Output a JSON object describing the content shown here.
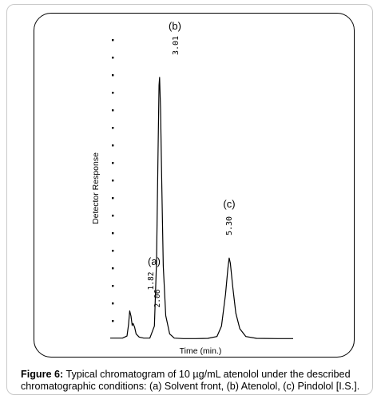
{
  "chart_data": {
    "type": "line",
    "xlabel": "Time (min.)",
    "ylabel": "Detector Response",
    "grid": false,
    "peaks": [
      {
        "label": "(a)",
        "retention_time_labels": [
          "2.06",
          "1.82"
        ],
        "relative_height": 0.15
      },
      {
        "label": "(b)",
        "retention_time_label": "3.01",
        "relative_height": 1.0
      },
      {
        "label": "(c)",
        "retention_time_label": "5.30",
        "relative_height": 0.32
      }
    ],
    "series": [
      {
        "x": [
          1.4,
          1.8,
          1.95,
          2.0,
          2.04,
          2.08,
          2.12,
          2.15,
          2.2,
          2.25,
          2.35,
          2.5,
          2.7,
          2.85,
          2.92,
          2.97,
          3.0,
          3.02,
          3.05,
          3.09,
          3.14,
          3.22,
          3.35,
          3.5,
          3.8,
          4.2,
          4.6,
          4.9,
          5.05,
          5.18,
          5.26,
          5.3,
          5.34,
          5.42,
          5.52,
          5.65,
          5.85,
          6.2,
          6.9,
          7.4
        ],
        "y": [
          0.004,
          0.004,
          0.012,
          0.055,
          0.108,
          0.088,
          0.052,
          0.06,
          0.046,
          0.02,
          0.008,
          0.004,
          0.004,
          0.05,
          0.3,
          0.72,
          0.97,
          1.0,
          0.88,
          0.6,
          0.28,
          0.09,
          0.02,
          0.004,
          0.002,
          0.002,
          0.003,
          0.01,
          0.05,
          0.17,
          0.27,
          0.31,
          0.29,
          0.2,
          0.1,
          0.04,
          0.01,
          0.003,
          0.002,
          0.002
        ]
      }
    ]
  },
  "caption": {
    "lead": "Figure 6:",
    "text": " Typical chromatogram of 10 µg/mL atenolol under the described chromatographic conditions: (a) Solvent front, (b) Atenolol, (c) Pindolol [I.S.]."
  }
}
